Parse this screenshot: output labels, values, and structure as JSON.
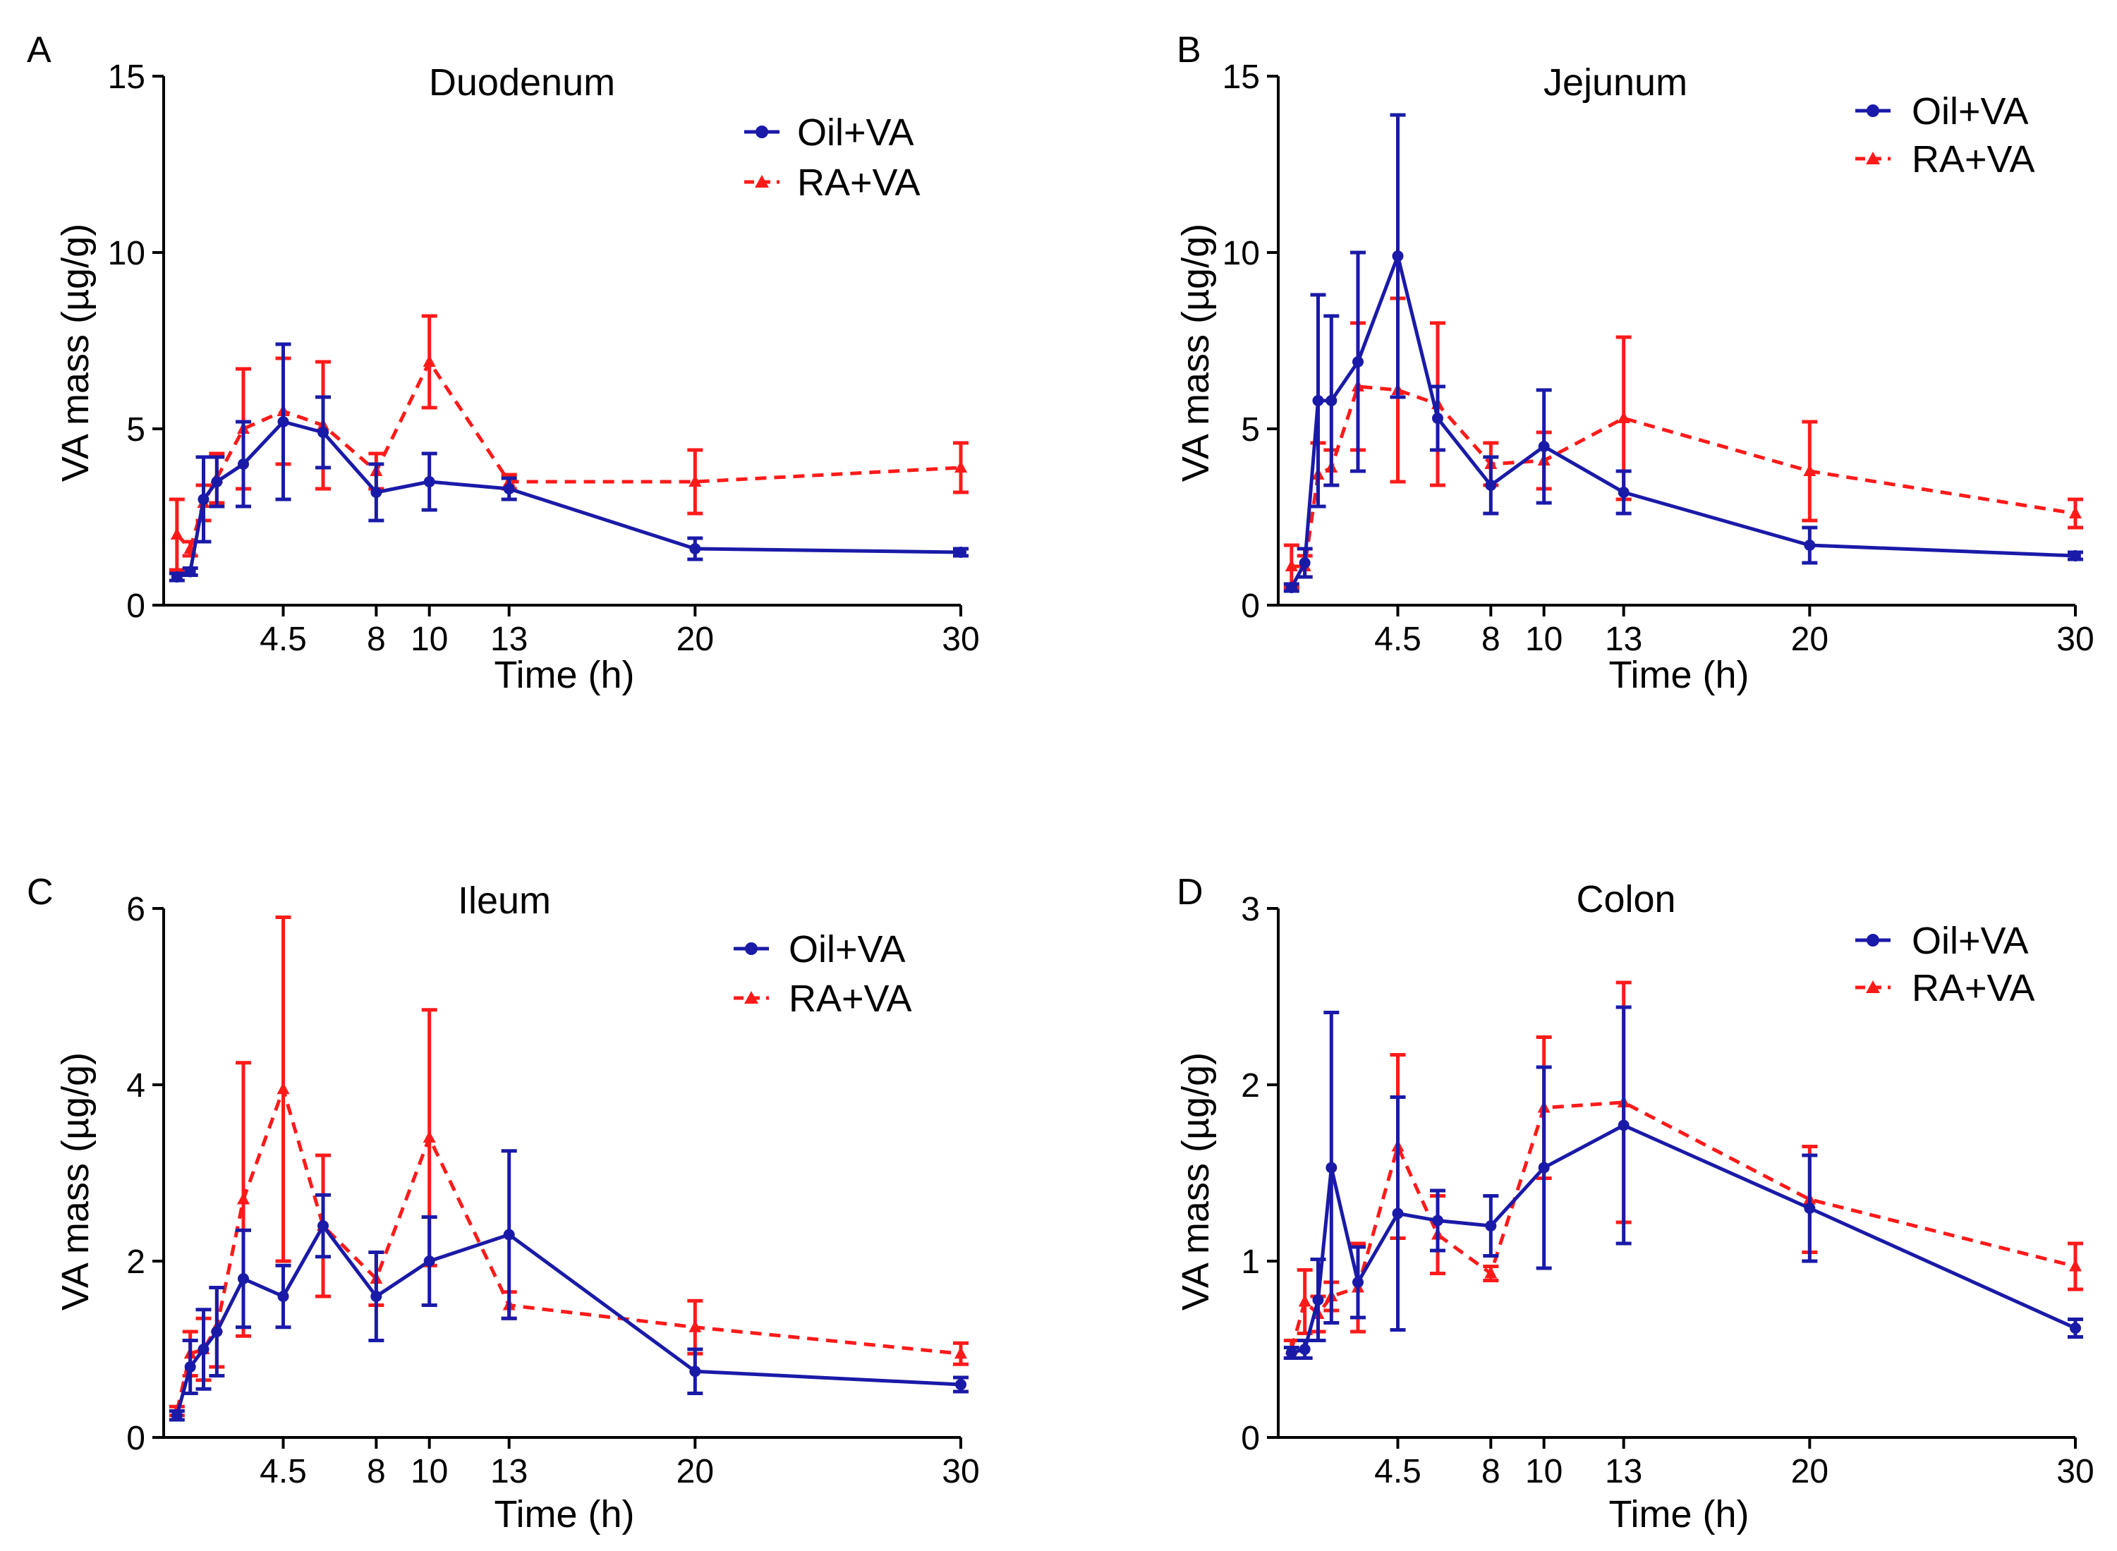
{
  "figure": {
    "colors": {
      "oil": "#1a1aa8",
      "ra": "#ff1a1a",
      "axis": "#000000"
    }
  },
  "chart_data": [
    {
      "panel": "A",
      "type": "line",
      "title": "Duodenum",
      "xlabel": "Time (h)",
      "ylabel": "VA mass (µg/g)",
      "xlim": [
        0,
        30
      ],
      "ylim": [
        0,
        15
      ],
      "xticks": [
        4.5,
        8,
        10,
        13,
        20,
        30
      ],
      "xtick_labels": [
        "4.5",
        "8",
        "10",
        "13",
        "20",
        "30"
      ],
      "yticks": [
        0,
        5,
        10,
        15
      ],
      "ytick_labels": [
        "0",
        "5",
        "10",
        "15"
      ],
      "legend": "top-right",
      "series": [
        {
          "name": "Oil+VA",
          "style": "solid",
          "marker": "circle",
          "x": [
            0.5,
            1,
            1.5,
            2,
            3,
            4.5,
            6,
            8,
            10,
            13,
            20,
            30
          ],
          "values": [
            0.8,
            0.95,
            3.0,
            3.5,
            4.0,
            5.2,
            4.9,
            3.2,
            3.5,
            3.3,
            1.6,
            1.5
          ],
          "err": [
            0.1,
            0.1,
            1.2,
            0.7,
            1.2,
            2.2,
            1.0,
            0.8,
            0.8,
            0.3,
            0.3,
            0.1
          ]
        },
        {
          "name": "RA+VA",
          "style": "dashed",
          "marker": "triangle",
          "x": [
            0.5,
            1,
            1.5,
            2,
            3,
            4.5,
            6,
            8,
            10,
            13,
            20,
            30
          ],
          "values": [
            2.0,
            1.6,
            2.9,
            3.6,
            5.0,
            5.5,
            5.1,
            3.8,
            6.9,
            3.5,
            3.5,
            3.9
          ],
          "err": [
            1.0,
            0.2,
            0.5,
            0.7,
            1.7,
            1.5,
            1.8,
            0.5,
            1.3,
            0.2,
            0.9,
            0.7
          ]
        }
      ]
    },
    {
      "panel": "B",
      "type": "line",
      "title": "Jejunum",
      "xlabel": "Time (h)",
      "ylabel": "VA mass (µg/g)",
      "xlim": [
        0,
        30
      ],
      "ylim": [
        0,
        15
      ],
      "xticks": [
        4.5,
        8,
        10,
        13,
        20,
        30
      ],
      "xtick_labels": [
        "4.5",
        "8",
        "10",
        "13",
        "20",
        "30"
      ],
      "yticks": [
        0,
        5,
        10,
        15
      ],
      "ytick_labels": [
        "0",
        "5",
        "10",
        "15"
      ],
      "legend": "top-right",
      "series": [
        {
          "name": "Oil+VA",
          "style": "solid",
          "marker": "circle",
          "x": [
            0.5,
            1,
            1.5,
            2,
            3,
            4.5,
            6,
            8,
            10,
            13,
            20,
            30
          ],
          "values": [
            0.5,
            1.2,
            5.8,
            5.8,
            6.9,
            9.9,
            5.3,
            3.4,
            4.5,
            3.2,
            1.7,
            1.4
          ],
          "err": [
            0.1,
            0.4,
            3.0,
            2.4,
            3.1,
            4.0,
            0.9,
            0.8,
            1.6,
            0.6,
            0.5,
            0.1
          ]
        },
        {
          "name": "RA+VA",
          "style": "dashed",
          "marker": "triangle",
          "x": [
            0.5,
            1,
            1.5,
            2,
            3,
            4.5,
            6,
            8,
            10,
            13,
            20,
            30
          ],
          "values": [
            1.1,
            1.1,
            3.7,
            3.9,
            6.2,
            6.1,
            5.7,
            4.0,
            4.1,
            5.3,
            3.8,
            2.6
          ],
          "err": [
            0.6,
            0.3,
            0.9,
            0.5,
            1.8,
            2.6,
            2.3,
            0.6,
            0.8,
            2.3,
            1.4,
            0.4
          ]
        }
      ]
    },
    {
      "panel": "C",
      "type": "line",
      "title": "Ileum",
      "xlabel": "Time (h)",
      "ylabel": "VA mass (µg/g)",
      "xlim": [
        0,
        30
      ],
      "ylim": [
        0,
        6
      ],
      "xticks": [
        4.5,
        8,
        10,
        13,
        20,
        30
      ],
      "xtick_labels": [
        "4.5",
        "8",
        "10",
        "13",
        "20",
        "30"
      ],
      "yticks": [
        0,
        2,
        4,
        6
      ],
      "ytick_labels": [
        "0",
        "2",
        "4",
        "6"
      ],
      "legend": "top-right",
      "series": [
        {
          "name": "Oil+VA",
          "style": "solid",
          "marker": "circle",
          "x": [
            0.5,
            1,
            1.5,
            2,
            3,
            4.5,
            6,
            8,
            10,
            13,
            20,
            30
          ],
          "values": [
            0.25,
            0.8,
            1.0,
            1.2,
            1.8,
            1.6,
            2.4,
            1.6,
            2.0,
            2.3,
            0.75,
            0.6
          ],
          "err": [
            0.05,
            0.3,
            0.45,
            0.5,
            0.55,
            0.35,
            0.35,
            0.5,
            0.5,
            0.95,
            0.25,
            0.08
          ]
        },
        {
          "name": "RA+VA",
          "style": "dashed",
          "marker": "triangle",
          "x": [
            0.5,
            1,
            1.5,
            2,
            3,
            4.5,
            6,
            8,
            10,
            13,
            20,
            30
          ],
          "values": [
            0.3,
            0.95,
            1.0,
            1.25,
            2.7,
            3.95,
            2.4,
            1.8,
            3.4,
            1.5,
            1.25,
            0.95
          ],
          "err": [
            0.05,
            0.25,
            0.35,
            0.45,
            1.55,
            1.95,
            0.8,
            0.3,
            1.45,
            0.15,
            0.3,
            0.12
          ]
        }
      ]
    },
    {
      "panel": "D",
      "type": "line",
      "title": "Colon",
      "xlabel": "Time (h)",
      "ylabel": "VA mass (µg/g)",
      "xlim": [
        0,
        30
      ],
      "ylim": [
        0,
        3
      ],
      "xticks": [
        4.5,
        8,
        10,
        13,
        20,
        30
      ],
      "xtick_labels": [
        "4.5",
        "8",
        "10",
        "13",
        "20",
        "30"
      ],
      "yticks": [
        0,
        1,
        2,
        3
      ],
      "ytick_labels": [
        "0",
        "1",
        "2",
        "3"
      ],
      "legend": "top-right",
      "series": [
        {
          "name": "Oil+VA",
          "style": "solid",
          "marker": "circle",
          "x": [
            0.5,
            1,
            1.5,
            2,
            3,
            4.5,
            6,
            8,
            10,
            13,
            20,
            30
          ],
          "values": [
            0.48,
            0.5,
            0.78,
            1.53,
            0.88,
            1.27,
            1.23,
            1.2,
            1.53,
            1.77,
            1.3,
            0.62
          ],
          "err": [
            0.03,
            0.05,
            0.23,
            0.88,
            0.2,
            0.66,
            0.17,
            0.17,
            0.57,
            0.67,
            0.3,
            0.05
          ]
        },
        {
          "name": "RA+VA",
          "style": "dashed",
          "marker": "triangle",
          "x": [
            0.5,
            1,
            1.5,
            2,
            3,
            4.5,
            6,
            8,
            10,
            13,
            20,
            30
          ],
          "values": [
            0.5,
            0.77,
            0.7,
            0.8,
            0.85,
            1.65,
            1.15,
            0.93,
            1.87,
            1.9,
            1.35,
            0.97
          ],
          "err": [
            0.05,
            0.18,
            0.1,
            0.08,
            0.25,
            0.52,
            0.22,
            0.04,
            0.4,
            0.68,
            0.3,
            0.13
          ]
        }
      ]
    }
  ]
}
